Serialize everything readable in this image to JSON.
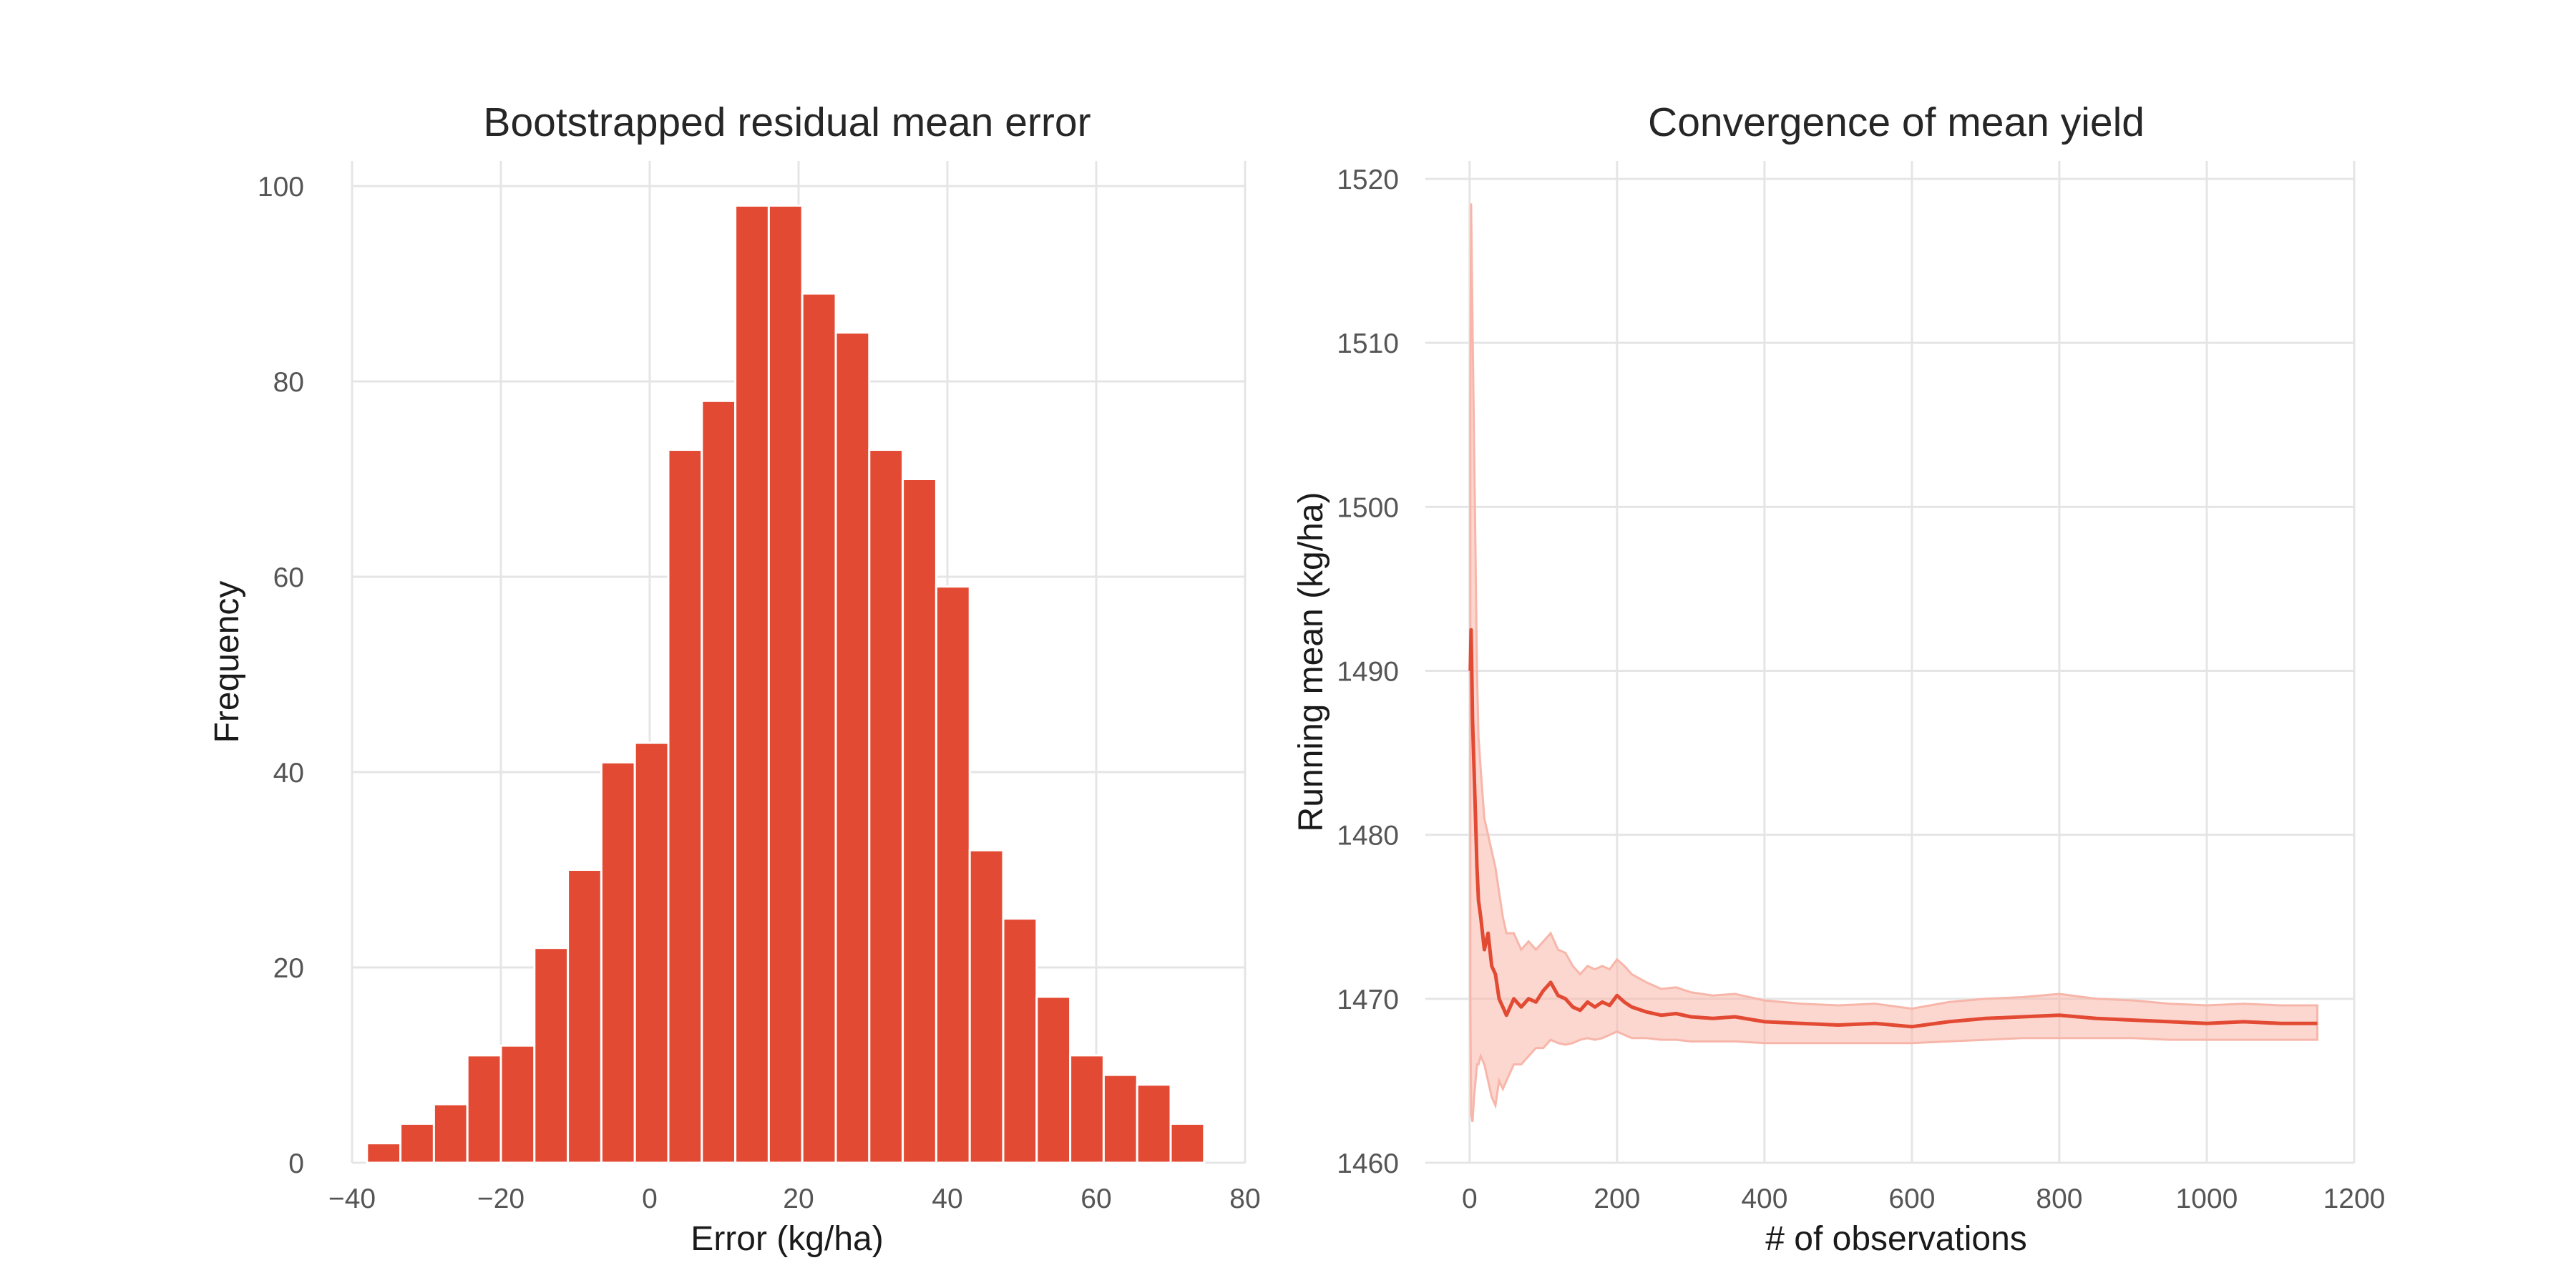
{
  "chart_data": [
    {
      "type": "bar",
      "title": "Bootstrapped residual mean error",
      "xlabel": "Error (kg/ha)",
      "ylabel": "Frequency",
      "xlim": [
        -40,
        80
      ],
      "ylim": [
        0,
        100
      ],
      "xticks": [
        -40,
        -20,
        0,
        20,
        40,
        60,
        80
      ],
      "xtick_labels": [
        "−40",
        "−20",
        "0",
        "20",
        "40",
        "60",
        "80"
      ],
      "yticks": [
        0,
        20,
        40,
        60,
        80,
        100
      ],
      "ytick_labels": [
        "0",
        "20",
        "40",
        "60",
        "80",
        "100"
      ],
      "grid": true,
      "bar_color": "#e34a33",
      "bin_edges": [
        -38,
        -33.5,
        -29,
        -24.5,
        -20,
        -15.5,
        -11,
        -6.5,
        -2,
        2.5,
        7,
        11.5,
        16,
        20.5,
        25,
        29.5,
        34,
        38.5,
        43,
        47.5,
        52,
        56.5,
        61,
        65.5,
        70,
        74.5
      ],
      "values": [
        2,
        4,
        6,
        11,
        12,
        22,
        30,
        41,
        43,
        73,
        78,
        98,
        98,
        89,
        85,
        73,
        70,
        59,
        32,
        25,
        17,
        11,
        9,
        8,
        4
      ]
    },
    {
      "type": "line",
      "title": "Convergence of mean yield",
      "xlabel": "# of observations",
      "ylabel": "Running mean (kg/ha)",
      "xlim": [
        -60,
        1200
      ],
      "ylim": [
        1460,
        1520
      ],
      "xticks": [
        0,
        200,
        400,
        600,
        800,
        1000,
        1200
      ],
      "xtick_labels": [
        "0",
        "200",
        "400",
        "600",
        "800",
        "1000",
        "1200"
      ],
      "yticks": [
        1460,
        1470,
        1480,
        1490,
        1500,
        1510,
        1520
      ],
      "ytick_labels": [
        "1460",
        "1470",
        "1480",
        "1490",
        "1500",
        "1510",
        "1520"
      ],
      "grid": true,
      "line_color": "#e34a33",
      "band_color": "#f7b6a9",
      "x": [
        1,
        2,
        4,
        6,
        8,
        10,
        12,
        15,
        20,
        25,
        30,
        35,
        40,
        45,
        50,
        60,
        70,
        80,
        90,
        100,
        110,
        120,
        130,
        140,
        150,
        160,
        170,
        180,
        190,
        200,
        210,
        220,
        240,
        260,
        280,
        300,
        330,
        360,
        400,
        450,
        500,
        550,
        600,
        650,
        700,
        750,
        800,
        850,
        900,
        950,
        1000,
        1050,
        1100,
        1150
      ],
      "y": [
        1490,
        1492.5,
        1487,
        1484,
        1481,
        1478,
        1476,
        1475,
        1473,
        1474,
        1472,
        1471.5,
        1470,
        1469.5,
        1469,
        1470,
        1469.5,
        1470,
        1469.8,
        1470.5,
        1471,
        1470.2,
        1470,
        1469.5,
        1469.3,
        1469.8,
        1469.5,
        1469.8,
        1469.6,
        1470.2,
        1469.8,
        1469.5,
        1469.2,
        1469,
        1469.1,
        1468.9,
        1468.8,
        1468.9,
        1468.6,
        1468.5,
        1468.4,
        1468.5,
        1468.3,
        1468.6,
        1468.8,
        1468.9,
        1469,
        1468.8,
        1468.7,
        1468.6,
        1468.5,
        1468.6,
        1468.5,
        1468.5
      ],
      "lower": [
        1470,
        1463,
        1462.5,
        1464,
        1465,
        1466,
        1466,
        1466.5,
        1466,
        1465,
        1464,
        1463.5,
        1465,
        1464.5,
        1465,
        1466,
        1466,
        1466.5,
        1467,
        1467,
        1467.5,
        1467.3,
        1467.2,
        1467.3,
        1467.5,
        1467.6,
        1467.5,
        1467.6,
        1467.8,
        1468,
        1467.8,
        1467.6,
        1467.6,
        1467.5,
        1467.5,
        1467.4,
        1467.4,
        1467.4,
        1467.3,
        1467.3,
        1467.3,
        1467.3,
        1467.3,
        1467.4,
        1467.5,
        1467.6,
        1467.6,
        1467.6,
        1467.6,
        1467.5,
        1467.5,
        1467.5,
        1467.5,
        1467.5
      ],
      "upper": [
        1506,
        1518.5,
        1511,
        1504,
        1497,
        1490,
        1486,
        1484,
        1481,
        1480,
        1479,
        1478,
        1476.5,
        1475,
        1474,
        1474,
        1473,
        1473.5,
        1473,
        1473.5,
        1474,
        1473,
        1472.8,
        1472,
        1471.5,
        1472,
        1471.8,
        1472,
        1471.8,
        1472.4,
        1472,
        1471.5,
        1471,
        1470.6,
        1470.7,
        1470.4,
        1470.2,
        1470.3,
        1469.9,
        1469.7,
        1469.6,
        1469.7,
        1469.4,
        1469.8,
        1470,
        1470.1,
        1470.3,
        1470,
        1469.9,
        1469.7,
        1469.6,
        1469.7,
        1469.6,
        1469.6
      ]
    }
  ]
}
